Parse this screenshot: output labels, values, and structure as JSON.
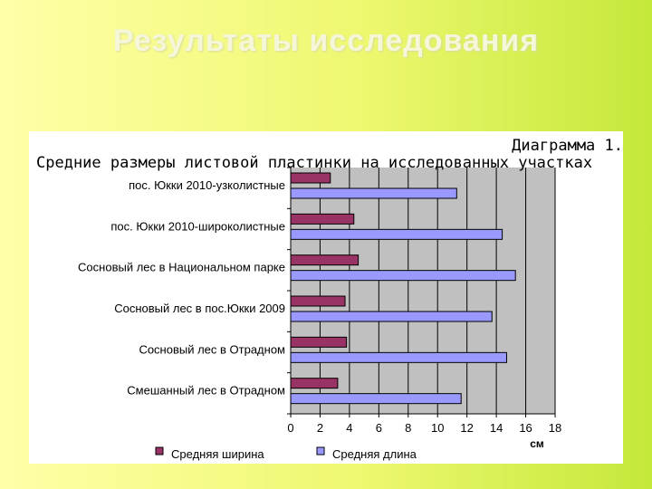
{
  "slide": {
    "title": "Результаты исследования"
  },
  "caption": {
    "line1": "Диаграмма 1.",
    "line2": "Средние размеры листовой пластинки на исследованных участках"
  },
  "chart_data": {
    "type": "bar",
    "orientation": "horizontal",
    "categories": [
      "пос. Юкки 2010-узколистные",
      "пос. Юкки 2010-широколистные",
      "Сосновый лес в Национальном парке",
      "Сосновый лес в пос.Юкки 2009",
      "Сосновый лес в Отрадном",
      "Смешанный лес в Отрадном"
    ],
    "series": [
      {
        "name": "Средняя ширина",
        "values": [
          2.7,
          4.3,
          4.6,
          3.7,
          3.8,
          3.2
        ],
        "color": "#993366"
      },
      {
        "name": "Средняя длина",
        "values": [
          11.3,
          14.4,
          15.3,
          13.7,
          14.7,
          11.6
        ],
        "color": "#9999ff"
      }
    ],
    "xlim": [
      0,
      18
    ],
    "xticks": [
      0,
      2,
      4,
      6,
      8,
      10,
      12,
      14,
      16,
      18
    ],
    "xlabel": "см",
    "grid": true,
    "plot_background": "#c0c0c0",
    "legend_position": "bottom"
  }
}
